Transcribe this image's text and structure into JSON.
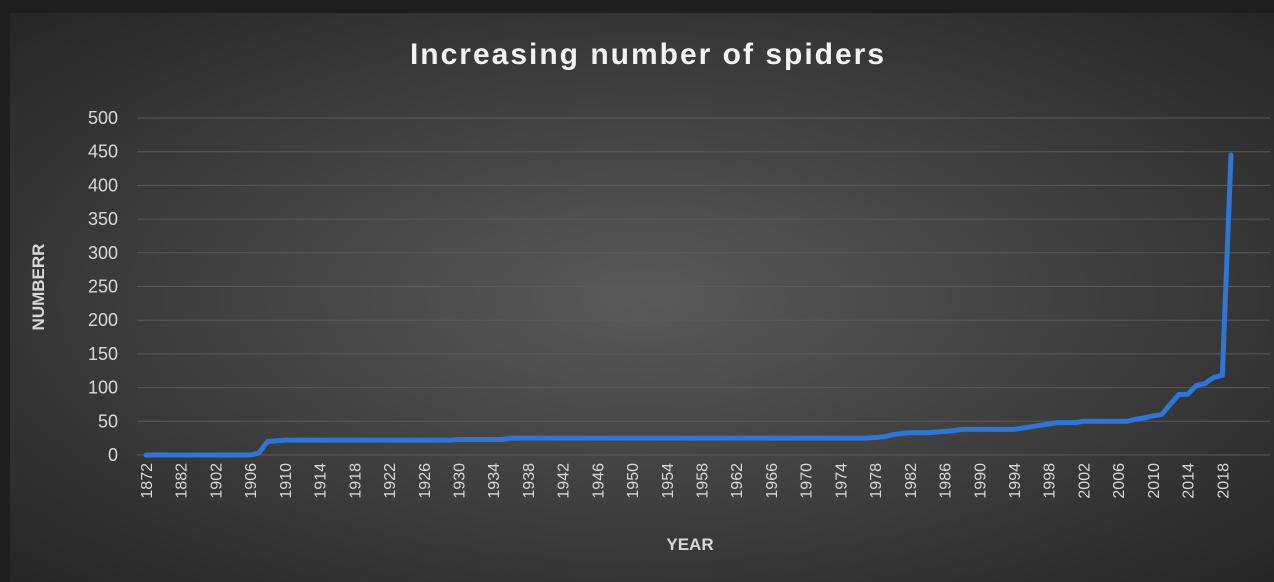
{
  "chart_data": {
    "type": "line",
    "title": "Increasing number of spiders",
    "x_label": "YEAR",
    "y_label": "NUMBERR",
    "categories": [
      "1872",
      null,
      null,
      null,
      "1882",
      null,
      null,
      null,
      "1902",
      null,
      null,
      null,
      "1906",
      null,
      null,
      null,
      "1910",
      null,
      null,
      null,
      "1914",
      null,
      null,
      null,
      "1918",
      null,
      null,
      null,
      "1922",
      null,
      null,
      null,
      "1926",
      null,
      null,
      null,
      "1930",
      null,
      null,
      null,
      "1934",
      null,
      null,
      null,
      "1938",
      null,
      null,
      null,
      "1942",
      null,
      null,
      null,
      "1946",
      null,
      null,
      null,
      "1950",
      null,
      null,
      null,
      "1954",
      null,
      null,
      null,
      "1958",
      null,
      null,
      null,
      "1962",
      null,
      null,
      null,
      "1966",
      null,
      null,
      null,
      "1970",
      null,
      null,
      null,
      "1974",
      null,
      null,
      null,
      "1978",
      null,
      null,
      null,
      "1982",
      null,
      null,
      null,
      "1986",
      null,
      null,
      null,
      "1990",
      null,
      null,
      null,
      "1994",
      null,
      null,
      null,
      "1998",
      null,
      null,
      null,
      "2002",
      null,
      null,
      null,
      "2006",
      null,
      null,
      null,
      "2010",
      null,
      null,
      null,
      "2014",
      null,
      null,
      null,
      "2018",
      null
    ],
    "values": [
      0,
      0,
      0,
      0,
      0,
      0,
      0,
      0,
      0,
      0,
      0,
      0,
      0,
      3,
      20,
      21,
      22,
      22,
      22,
      22,
      22,
      22,
      22,
      22,
      22,
      22,
      22,
      22,
      22,
      22,
      22,
      22,
      22,
      22,
      22,
      22,
      23,
      23,
      23,
      23,
      23,
      23,
      25,
      25,
      25,
      25,
      25,
      25,
      25,
      25,
      25,
      25,
      25,
      25,
      25,
      25,
      25,
      25,
      25,
      25,
      25,
      25,
      25,
      25,
      25,
      25,
      25,
      25,
      25,
      25,
      25,
      25,
      25,
      25,
      25,
      25,
      25,
      25,
      25,
      25,
      25,
      25,
      25,
      25,
      26,
      27,
      30,
      32,
      33,
      33,
      33,
      34,
      35,
      36,
      38,
      38,
      38,
      38,
      38,
      38,
      38,
      40,
      42,
      44,
      46,
      48,
      48,
      48,
      50,
      50,
      50,
      50,
      50,
      50,
      53,
      55,
      58,
      60,
      75,
      90,
      90,
      103,
      106,
      115,
      118,
      445
    ],
    "color": "#2e75d6",
    "ylim": [
      0,
      500
    ],
    "yticks": [
      0,
      50,
      100,
      150,
      200,
      250,
      300,
      350,
      400,
      450,
      500
    ],
    "grid": true
  }
}
